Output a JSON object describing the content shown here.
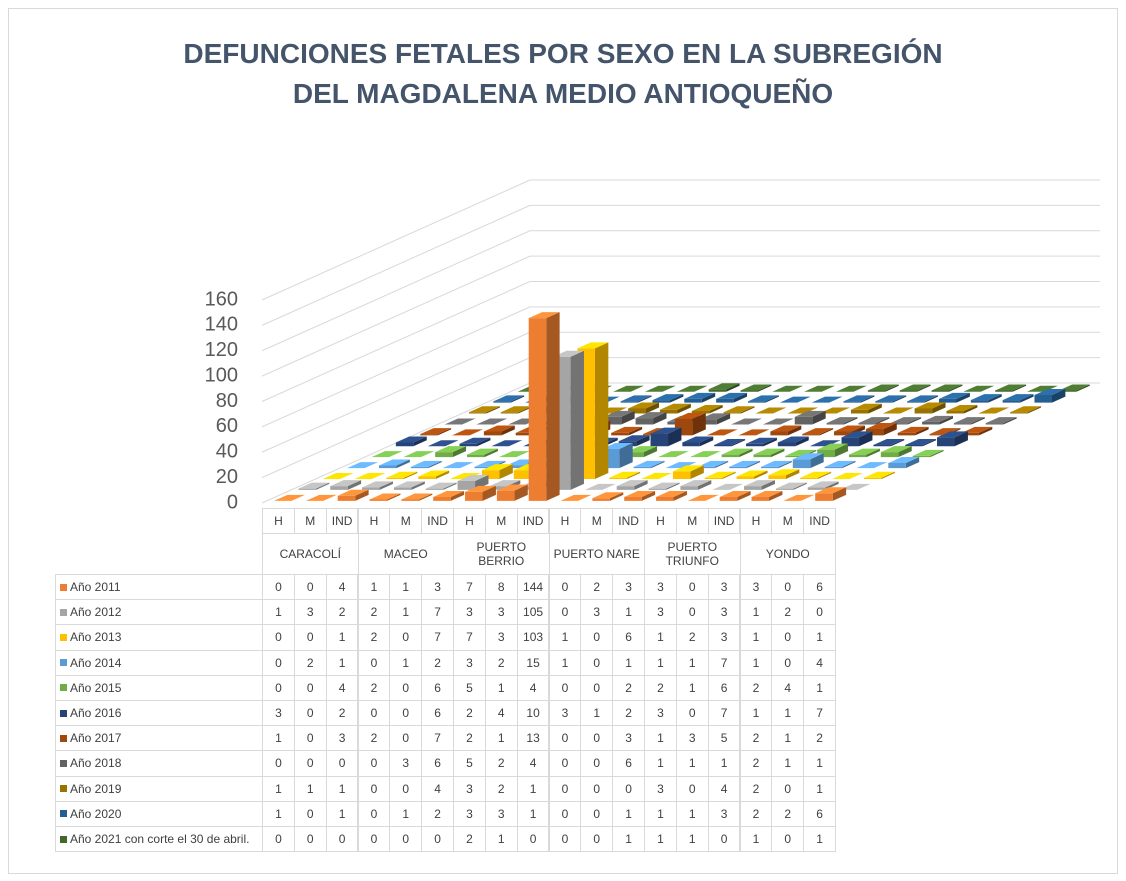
{
  "chart_data": {
    "type": "bar3d",
    "title": "DEFUNCIONES FETALES POR SEXO EN LA SUBREGIÓN DEL MAGDALENA MEDIO ANTIOQUEÑO",
    "categories": [
      "H",
      "M",
      "IND",
      "H",
      "M",
      "IND",
      "H",
      "M",
      "IND",
      "H",
      "M",
      "IND",
      "H",
      "M",
      "IND",
      "H",
      "M",
      "IND"
    ],
    "groups": [
      "CARACOLÍ",
      "MACEO",
      "PUERTO BERRIO",
      "PUERTO NARE",
      "PUERTO TRIUNFO",
      "YONDO"
    ],
    "ylim": [
      0,
      160
    ],
    "yticks": [
      0,
      20,
      40,
      60,
      80,
      100,
      120,
      140,
      160
    ],
    "grid": true,
    "series": [
      {
        "name": "Año 2011",
        "color": "#ed7d31",
        "values": [
          0,
          0,
          4,
          1,
          1,
          3,
          7,
          8,
          144,
          0,
          2,
          3,
          3,
          0,
          3,
          3,
          0,
          6
        ]
      },
      {
        "name": "Año 2012",
        "color": "#a5a5a5",
        "values": [
          1,
          3,
          2,
          2,
          1,
          7,
          3,
          3,
          105,
          0,
          3,
          1,
          3,
          0,
          3,
          1,
          2,
          0
        ]
      },
      {
        "name": "Año 2013",
        "color": "#ffc000",
        "values": [
          0,
          0,
          1,
          2,
          0,
          7,
          7,
          3,
          103,
          1,
          0,
          6,
          1,
          2,
          3,
          1,
          0,
          1
        ]
      },
      {
        "name": "Año 2014",
        "color": "#5b9bd5",
        "values": [
          0,
          2,
          1,
          0,
          1,
          2,
          3,
          2,
          15,
          1,
          0,
          1,
          1,
          1,
          7,
          1,
          0,
          4
        ]
      },
      {
        "name": "Año 2015",
        "color": "#70ad47",
        "values": [
          0,
          0,
          4,
          2,
          0,
          6,
          5,
          1,
          4,
          0,
          0,
          2,
          2,
          1,
          6,
          2,
          4,
          1
        ]
      },
      {
        "name": "Año 2016",
        "color": "#264478",
        "values": [
          3,
          0,
          2,
          0,
          0,
          6,
          2,
          4,
          10,
          3,
          1,
          2,
          3,
          0,
          7,
          1,
          1,
          7
        ]
      },
      {
        "name": "Año 2017",
        "color": "#9e480e",
        "values": [
          1,
          0,
          3,
          2,
          0,
          7,
          2,
          1,
          13,
          0,
          0,
          3,
          1,
          3,
          5,
          2,
          1,
          2
        ]
      },
      {
        "name": "Año 2018",
        "color": "#636363",
        "values": [
          0,
          0,
          0,
          0,
          3,
          6,
          5,
          2,
          4,
          0,
          0,
          6,
          1,
          1,
          1,
          2,
          1,
          1
        ]
      },
      {
        "name": "Año 2019",
        "color": "#997300",
        "values": [
          1,
          1,
          1,
          0,
          0,
          4,
          3,
          2,
          1,
          0,
          0,
          0,
          3,
          0,
          4,
          2,
          0,
          1
        ]
      },
      {
        "name": "Año 2020",
        "color": "#255e91",
        "values": [
          1,
          0,
          1,
          0,
          1,
          2,
          3,
          3,
          1,
          0,
          0,
          1,
          1,
          1,
          3,
          2,
          2,
          6
        ]
      },
      {
        "name": "Año 2021 con corte el 30 de abril.",
        "color": "#43682b",
        "values": [
          0,
          0,
          0,
          0,
          0,
          0,
          2,
          1,
          0,
          0,
          0,
          1,
          1,
          1,
          0,
          1,
          0,
          1
        ]
      }
    ]
  }
}
